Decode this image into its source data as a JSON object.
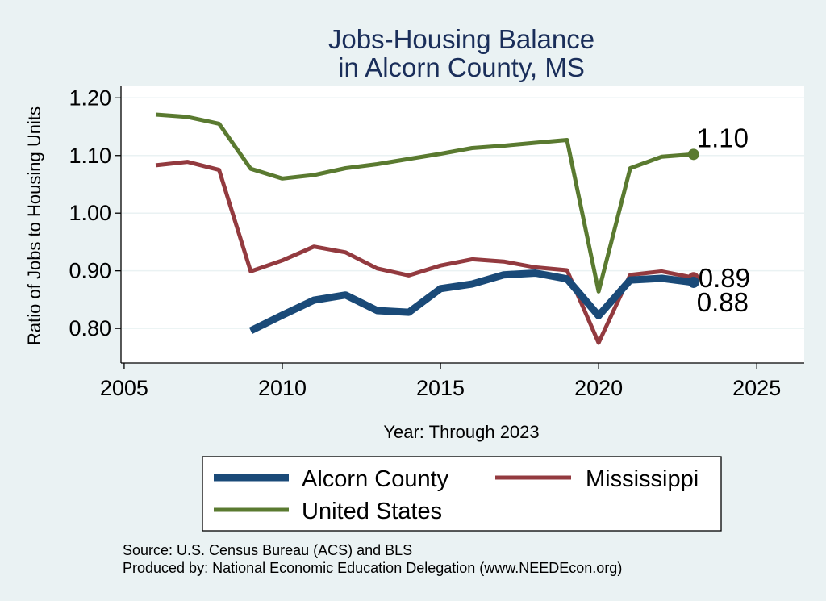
{
  "chart_data": {
    "type": "line",
    "title": [
      "Jobs-Housing Balance",
      "in Alcorn County, MS"
    ],
    "xlabel": "Year: Through 2023",
    "ylabel": "Ratio of Jobs to Housing Units",
    "xlim": [
      2004.9,
      2026.5
    ],
    "ylim": [
      0.74,
      1.22
    ],
    "xticks": [
      2005,
      2010,
      2015,
      2020,
      2025
    ],
    "yticks": [
      0.8,
      0.9,
      1.0,
      1.1,
      1.2
    ],
    "ytick_labels": [
      "0.80",
      "0.90",
      "1.00",
      "1.10",
      "1.20"
    ],
    "grid": true,
    "series": [
      {
        "name": "Alcorn County",
        "color": "#1a4a78",
        "width": "thick",
        "x": [
          2009,
          2010,
          2011,
          2012,
          2013,
          2014,
          2015,
          2016,
          2017,
          2018,
          2019,
          2020,
          2021,
          2022,
          2023
        ],
        "values": [
          0.796,
          0.823,
          0.849,
          0.858,
          0.831,
          0.828,
          0.869,
          0.877,
          0.893,
          0.896,
          0.886,
          0.822,
          0.884,
          0.887,
          0.88
        ],
        "end_label": "0.88"
      },
      {
        "name": "Mississippi",
        "color": "#933a3f",
        "width": "medium",
        "x": [
          2006,
          2007,
          2008,
          2009,
          2010,
          2011,
          2012,
          2013,
          2014,
          2015,
          2016,
          2017,
          2018,
          2019,
          2020,
          2021,
          2022,
          2023
        ],
        "values": [
          1.083,
          1.089,
          1.075,
          0.899,
          0.918,
          0.942,
          0.932,
          0.904,
          0.892,
          0.909,
          0.92,
          0.916,
          0.906,
          0.901,
          0.775,
          0.893,
          0.899,
          0.888
        ],
        "end_label": "0.89"
      },
      {
        "name": "United States",
        "color": "#5a7a30",
        "width": "medium",
        "x": [
          2006,
          2007,
          2008,
          2009,
          2010,
          2011,
          2012,
          2013,
          2014,
          2015,
          2016,
          2017,
          2018,
          2019,
          2020,
          2021,
          2022,
          2023
        ],
        "values": [
          1.171,
          1.167,
          1.155,
          1.077,
          1.06,
          1.066,
          1.078,
          1.085,
          1.094,
          1.103,
          1.113,
          1.117,
          1.122,
          1.127,
          0.864,
          1.078,
          1.098,
          1.102
        ],
        "end_label": "1.10"
      }
    ],
    "legend": {
      "placement": "bottom",
      "items": [
        "Alcorn County",
        "Mississippi",
        "United States"
      ]
    },
    "source_lines": [
      "Source: U.S. Census Bureau (ACS) and BLS",
      "Produced by: National Economic Education Delegation (www.NEEDEcon.org)"
    ]
  }
}
